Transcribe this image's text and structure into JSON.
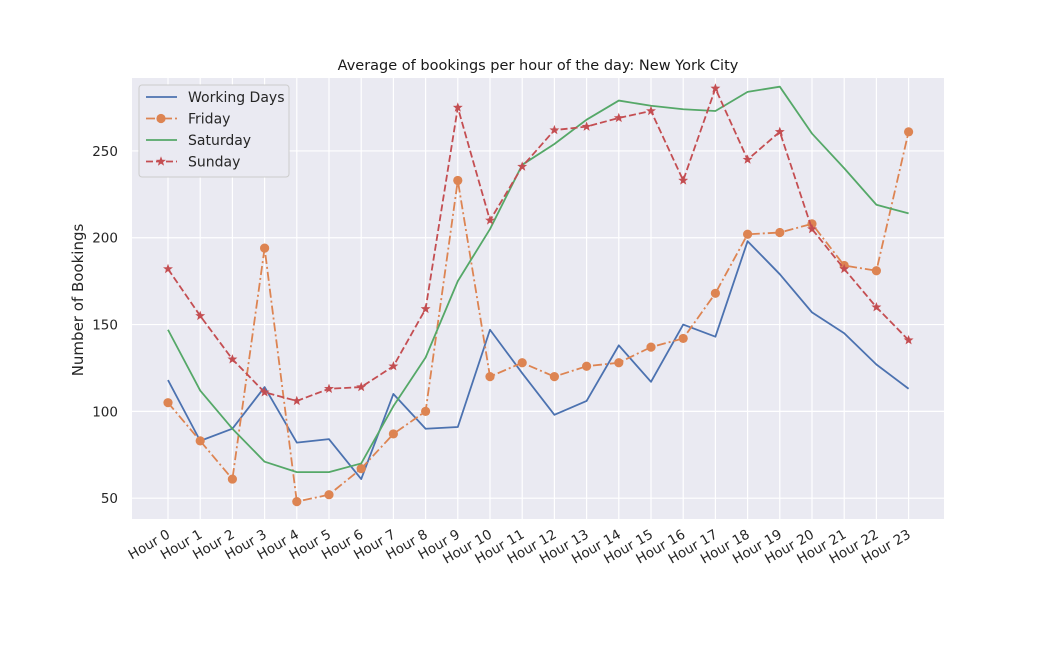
{
  "chart_data": {
    "type": "line",
    "title": "Average of bookings per hour of the day: New York City",
    "xlabel": "",
    "ylabel": "Number of Bookings",
    "categories": [
      "Hour 0",
      "Hour 1",
      "Hour 2",
      "Hour 3",
      "Hour 4",
      "Hour 5",
      "Hour 6",
      "Hour 7",
      "Hour 8",
      "Hour 9",
      "Hour 10",
      "Hour 11",
      "Hour 12",
      "Hour 13",
      "Hour 14",
      "Hour 15",
      "Hour 16",
      "Hour 17",
      "Hour 18",
      "Hour 19",
      "Hour 20",
      "Hour 21",
      "Hour 22",
      "Hour 23"
    ],
    "ylim": [
      38,
      292
    ],
    "yticks": [
      50,
      100,
      150,
      200,
      250
    ],
    "grid": true,
    "legend_position": "top-left",
    "series": [
      {
        "name": "Working Days",
        "color": "#4c72b0",
        "dash": "solid",
        "marker": "none",
        "values": [
          118,
          83,
          90,
          114,
          82,
          84,
          61,
          110,
          90,
          91,
          147,
          122,
          98,
          106,
          138,
          117,
          150,
          143,
          198,
          179,
          157,
          145,
          127,
          113
        ]
      },
      {
        "name": "Friday",
        "color": "#dd8452",
        "dash": "dashdot",
        "marker": "circle",
        "values": [
          105,
          83,
          61,
          194,
          48,
          52,
          67,
          87,
          100,
          233,
          120,
          128,
          120,
          126,
          128,
          137,
          142,
          168,
          202,
          203,
          208,
          184,
          181,
          261
        ]
      },
      {
        "name": "Saturday",
        "color": "#55a868",
        "dash": "solid",
        "marker": "none",
        "values": [
          147,
          112,
          90,
          71,
          65,
          65,
          70,
          103,
          131,
          175,
          205,
          242,
          254,
          268,
          279,
          276,
          274,
          273,
          284,
          287,
          260,
          240,
          219,
          214
        ]
      },
      {
        "name": "Sunday",
        "color": "#c44e52",
        "dash": "dashed",
        "marker": "star",
        "values": [
          182,
          155,
          130,
          111,
          106,
          113,
          114,
          126,
          159,
          275,
          210,
          241,
          262,
          264,
          269,
          273,
          233,
          286,
          245,
          261,
          205,
          182,
          160,
          141
        ]
      }
    ]
  }
}
